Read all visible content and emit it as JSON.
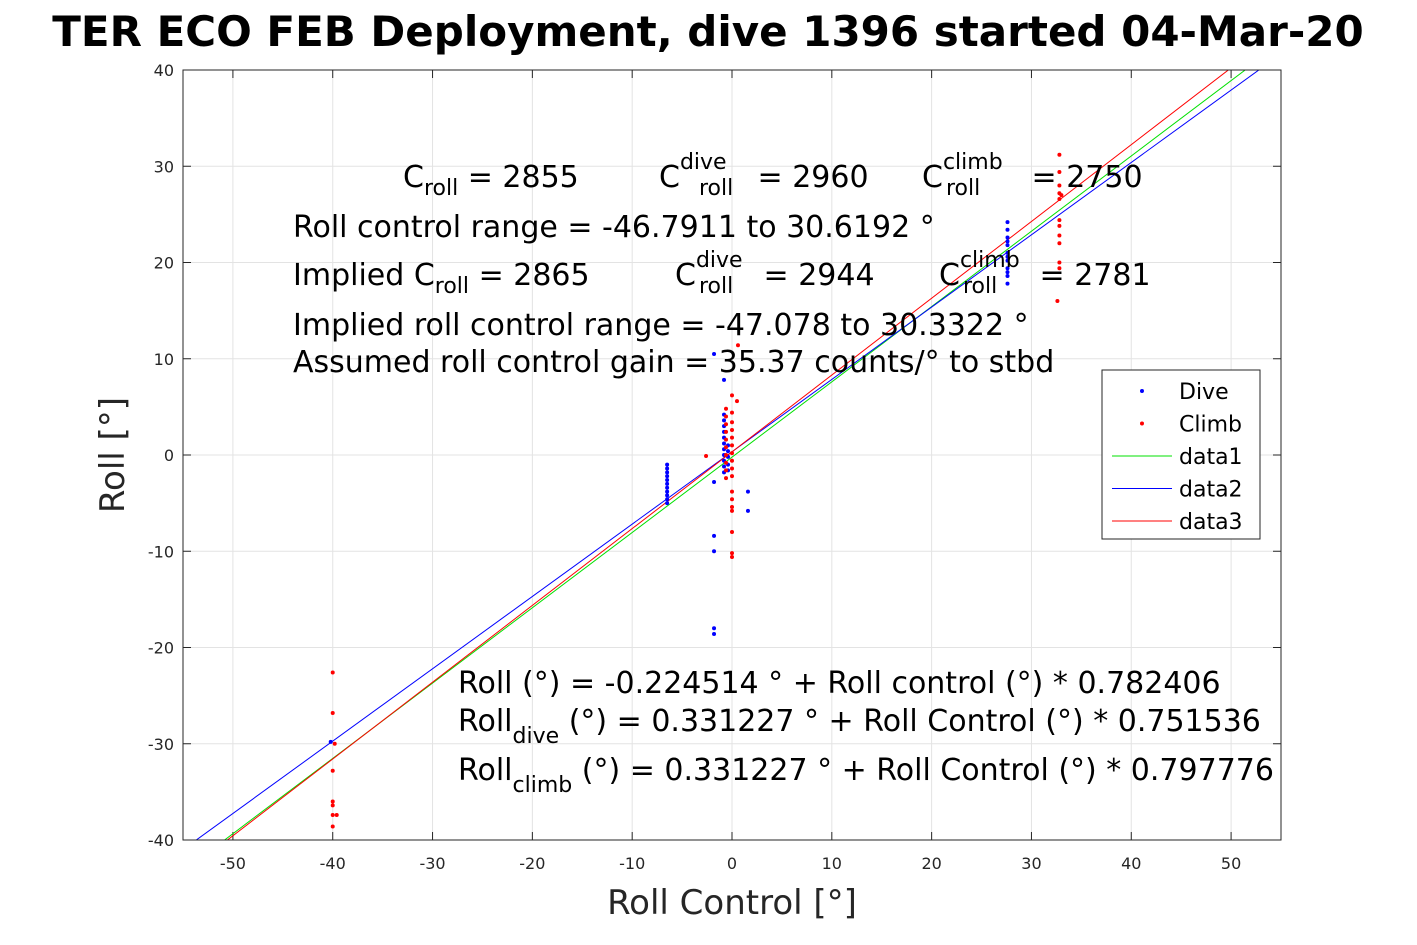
{
  "chart_data": {
    "type": "scatter",
    "title": "TER ECO FEB Deployment, dive 1396 started 04-Mar-20",
    "xlabel": "Roll Control [°]",
    "ylabel": "Roll [°]",
    "xlim": [
      -55,
      55
    ],
    "ylim": [
      -40,
      40
    ],
    "xticks": [
      -50,
      -40,
      -30,
      -20,
      -10,
      0,
      10,
      20,
      30,
      40,
      50
    ],
    "yticks": [
      -40,
      -30,
      -20,
      -10,
      0,
      10,
      20,
      30,
      40
    ],
    "grid": true,
    "legend_position": "right",
    "series": [
      {
        "name": "Dive",
        "kind": "points",
        "color": "#0000ff",
        "points": [
          [
            -6.5,
            -1.0
          ],
          [
            -6.5,
            -1.4
          ],
          [
            -6.5,
            -1.8
          ],
          [
            -6.5,
            -2.2
          ],
          [
            -6.5,
            -2.6
          ],
          [
            -6.5,
            -3.0
          ],
          [
            -6.5,
            -3.4
          ],
          [
            -6.5,
            -3.8
          ],
          [
            -6.5,
            -4.2
          ],
          [
            -6.5,
            -4.6
          ],
          [
            -6.5,
            -5.0
          ],
          [
            -1.8,
            10.5
          ],
          [
            -1.8,
            -18.0
          ],
          [
            -1.8,
            -18.6
          ],
          [
            -1.8,
            -10.0
          ],
          [
            -1.8,
            -8.4
          ],
          [
            -1.8,
            -2.8
          ],
          [
            -0.8,
            7.8
          ],
          [
            -0.8,
            4.2
          ],
          [
            -0.8,
            3.6
          ],
          [
            -0.8,
            3.0
          ],
          [
            -0.8,
            2.4
          ],
          [
            -0.8,
            1.8
          ],
          [
            -0.8,
            1.2
          ],
          [
            -0.8,
            0.6
          ],
          [
            -0.8,
            0.0
          ],
          [
            -0.8,
            -0.6
          ],
          [
            -0.8,
            -1.2
          ],
          [
            -0.8,
            -1.8
          ],
          [
            -0.4,
            1.0
          ],
          [
            -0.4,
            0.4
          ],
          [
            -0.4,
            -0.2
          ],
          [
            -0.4,
            -1.0
          ],
          [
            -0.4,
            -1.6
          ],
          [
            1.6,
            -3.8
          ],
          [
            1.6,
            -5.8
          ],
          [
            27.6,
            24.2
          ],
          [
            27.6,
            23.4
          ],
          [
            27.6,
            22.6
          ],
          [
            27.6,
            21.8
          ],
          [
            27.6,
            21.0
          ],
          [
            27.6,
            20.2
          ],
          [
            27.6,
            19.4
          ],
          [
            27.6,
            18.6
          ],
          [
            27.6,
            17.8
          ],
          [
            27.6,
            22.2
          ],
          [
            27.6,
            20.6
          ],
          [
            27.6,
            19.0
          ],
          [
            -40.2,
            -29.8
          ]
        ]
      },
      {
        "name": "Climb",
        "kind": "points",
        "color": "#ff0000",
        "points": [
          [
            -40.0,
            -22.6
          ],
          [
            -40.0,
            -26.8
          ],
          [
            -39.8,
            -30.0
          ],
          [
            -40.0,
            -32.8
          ],
          [
            -40.0,
            -36.0
          ],
          [
            -40.0,
            -36.4
          ],
          [
            -40.0,
            -37.4
          ],
          [
            -39.6,
            -37.4
          ],
          [
            -40.0,
            -38.6
          ],
          [
            -2.6,
            -0.1
          ],
          [
            -0.6,
            4.8
          ],
          [
            -0.6,
            4.0
          ],
          [
            -0.6,
            3.2
          ],
          [
            -0.6,
            2.4
          ],
          [
            -0.6,
            1.6
          ],
          [
            -0.6,
            0.8
          ],
          [
            -0.6,
            0.0
          ],
          [
            -0.6,
            -0.8
          ],
          [
            -0.6,
            -1.6
          ],
          [
            -0.6,
            -2.4
          ],
          [
            0.0,
            6.2
          ],
          [
            0.0,
            4.4
          ],
          [
            0.0,
            3.4
          ],
          [
            0.0,
            2.6
          ],
          [
            0.0,
            1.8
          ],
          [
            0.0,
            1.0
          ],
          [
            0.0,
            0.2
          ],
          [
            0.0,
            -0.6
          ],
          [
            0.0,
            -1.4
          ],
          [
            0.0,
            -2.2
          ],
          [
            0.0,
            -3.8
          ],
          [
            0.0,
            -4.6
          ],
          [
            0.0,
            -5.4
          ],
          [
            0.0,
            -5.8
          ],
          [
            0.0,
            -8.0
          ],
          [
            0.0,
            -10.2
          ],
          [
            0.0,
            -10.6
          ],
          [
            0.5,
            5.6
          ],
          [
            0.6,
            11.4
          ],
          [
            32.8,
            31.2
          ],
          [
            32.8,
            29.4
          ],
          [
            32.8,
            28.0
          ],
          [
            32.8,
            27.2
          ],
          [
            32.8,
            26.6
          ],
          [
            32.8,
            24.4
          ],
          [
            32.8,
            23.8
          ],
          [
            32.8,
            22.8
          ],
          [
            32.8,
            22.0
          ],
          [
            32.8,
            20.0
          ],
          [
            32.8,
            19.4
          ],
          [
            32.6,
            16.0
          ],
          [
            33.0,
            27.0
          ]
        ]
      },
      {
        "name": "data1",
        "kind": "line",
        "color": "#00e000",
        "x": [
          -55,
          55
        ],
        "y": [
          -43.26,
          42.81
        ]
      },
      {
        "name": "data2",
        "kind": "line",
        "color": "#0000ff",
        "x": [
          -55,
          55
        ],
        "y": [
          -41.0,
          41.67
        ]
      },
      {
        "name": "data3",
        "kind": "line",
        "color": "#ff0000",
        "x": [
          -55,
          55
        ],
        "y": [
          -43.55,
          44.21
        ]
      }
    ],
    "annotations": {
      "row1": [
        {
          "main": "C",
          "sub": "roll",
          "sup": "",
          "tail": " = 2855"
        },
        {
          "main": "C",
          "sub": "roll",
          "sup": "dive",
          "tail": " = 2960"
        },
        {
          "main": "C",
          "sub": "roll",
          "sup": "climb",
          "tail": " = 2750"
        }
      ],
      "line2": "Roll control range = -46.7911 to 30.6192 °",
      "row3": [
        {
          "main": "Implied C",
          "sub": "roll",
          "sup": "",
          "tail": " = 2865"
        },
        {
          "main": "C",
          "sub": "roll",
          "sup": "dive",
          "tail": " = 2944"
        },
        {
          "main": "C",
          "sub": "roll",
          "sup": "climb",
          "tail": " = 2781"
        }
      ],
      "line4": "Implied roll control range = -47.078 to 30.3322 °",
      "line5": "Assumed roll control gain = 35.37 counts/° to stbd",
      "fit1": "Roll (°) = -0.224514 ° + Roll control (°) * 0.782406",
      "fit2": {
        "main": "Roll",
        "sub": "dive",
        "tail": " (°) = 0.331227 ° + Roll Control (°) * 0.751536"
      },
      "fit3": {
        "main": "Roll",
        "sub": "climb",
        "tail": " (°) = 0.331227 ° + Roll Control (°) * 0.797776"
      }
    }
  }
}
